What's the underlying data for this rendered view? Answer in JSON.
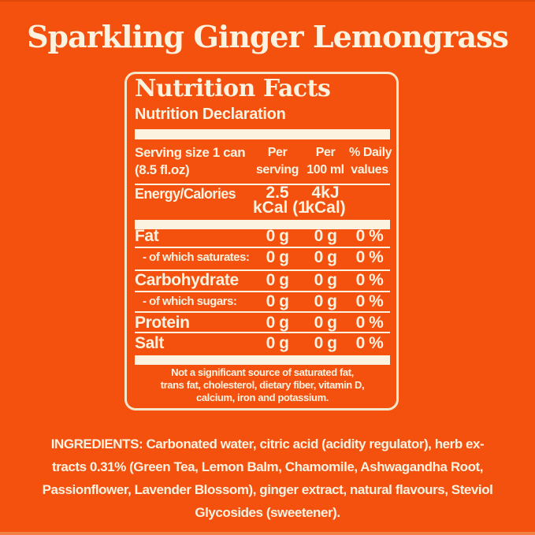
{
  "colors": {
    "background": "#F4500E",
    "text_cream": "#FBF2E0",
    "panel_border": "#F3E6CB",
    "top_edge": "#DD4A0C",
    "bottom_edge": "#F0A874"
  },
  "title": "Sparkling Ginger Lemongrass",
  "panel": {
    "heading": "Nutrition Facts",
    "subheading": "Nutrition Declaration",
    "serving": {
      "label_line1": "Serving size 1 can",
      "label_line2": "(8.5 fl.oz)",
      "col_per_serving_line1": "Per",
      "col_per_serving_line2": "serving",
      "col_per_100ml_line1": "Per",
      "col_per_100ml_line2": "100 ml",
      "col_daily_line1": "% Daily",
      "col_daily_line2": "values"
    },
    "energy": {
      "label": "Energy/Calories",
      "per_serving_top": "2.5",
      "per_100ml_top": "4kJ",
      "per_serving_bottom": "kCal (1",
      "per_100ml_bottom": "kCal)"
    },
    "rows": [
      {
        "label": "Fat",
        "style": "main",
        "per_serving": "0 g",
        "per_100ml": "0 g",
        "daily": "0 %"
      },
      {
        "label": "- of which saturates:",
        "style": "sub",
        "per_serving": "0 g",
        "per_100ml": "0 g",
        "daily": "0 %"
      },
      {
        "label": "Carbohydrate",
        "style": "main",
        "per_serving": "0 g",
        "per_100ml": "0 g",
        "daily": "0 %"
      },
      {
        "label": "- of which sugars:",
        "style": "sub",
        "per_serving": "0 g",
        "per_100ml": "0 g",
        "daily": "0 %"
      },
      {
        "label": "Protein",
        "style": "main",
        "per_serving": "0 g",
        "per_100ml": "0 g",
        "daily": "0 %"
      },
      {
        "label": "Salt",
        "style": "main",
        "per_serving": "0 g",
        "per_100ml": "0 g",
        "daily": "0 %"
      }
    ],
    "footnote_lines": [
      "Not a significant source of saturated fat,",
      "trans fat, cholesterol, dietary fiber, vitamin D,",
      "calcium, iron and potassium."
    ]
  },
  "ingredients": {
    "prefix": "INGREDIENTS:",
    "line1_rest": " Carbonated water, citric acid (acidity regulator), herb ex-",
    "line2": "tracts 0.31% (Green Tea, Lemon Balm, Chamomile, Ashwagandha Root,",
    "line3": "Passionflower, Lavender Blossom), ginger extract, natural flavours, Steviol",
    "line4": "Glycosides (sweetener)."
  }
}
